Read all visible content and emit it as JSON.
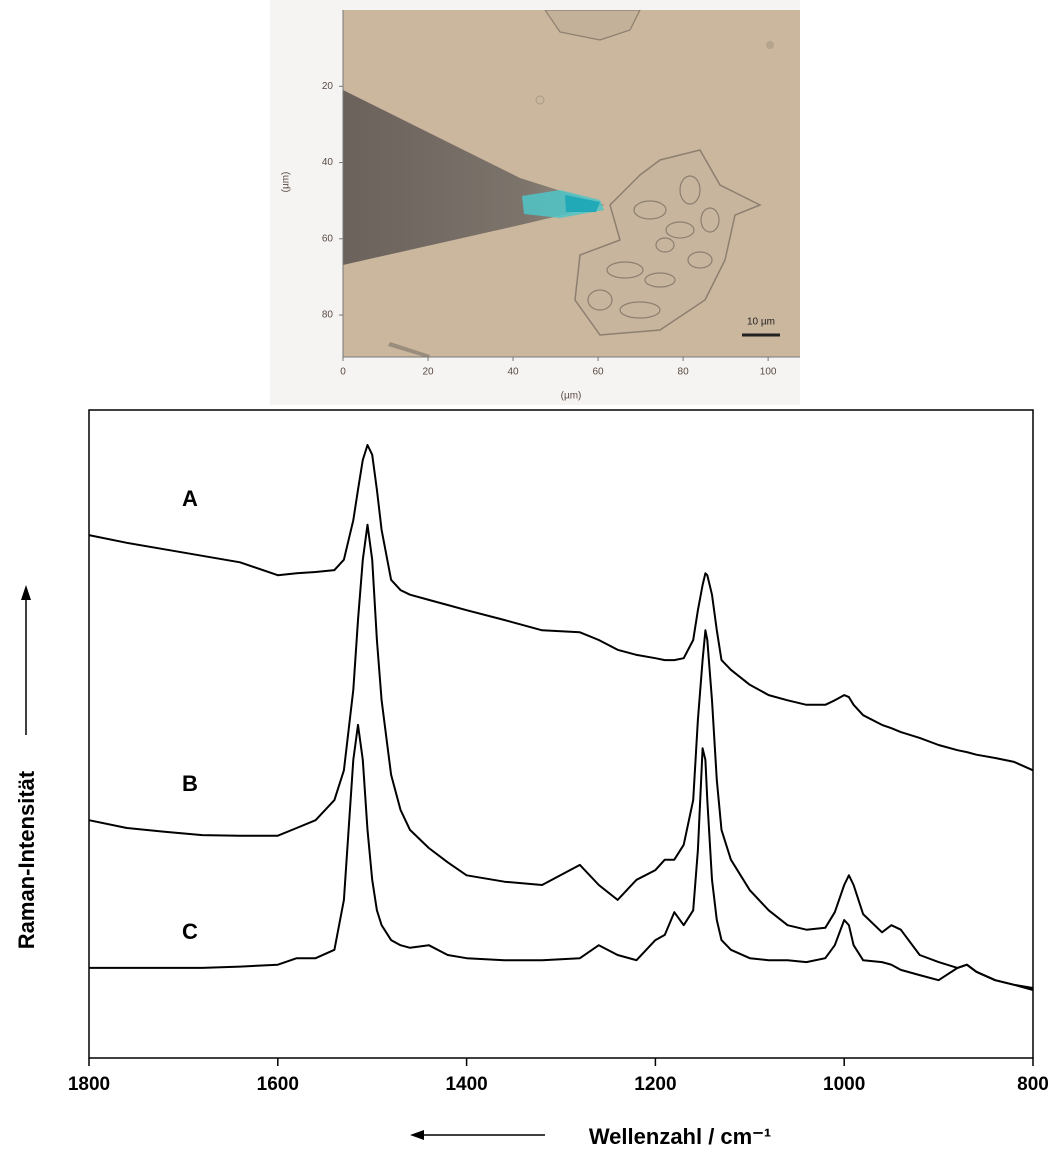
{
  "chart_data": [
    {
      "type": "image",
      "xlabel": "(µm)",
      "ylabel": "(µm)",
      "scale_label": "10 µm",
      "xlim": [
        0,
        107.5
      ],
      "ylim": [
        0,
        91
      ],
      "xticks": [
        0,
        20,
        40,
        60,
        80,
        100
      ],
      "yticks": [
        20,
        40,
        60,
        80
      ]
    },
    {
      "type": "line",
      "xlabel": "Wellenzahl / cm⁻¹",
      "ylabel": "Raman-Intensität",
      "xlim": [
        1800,
        800
      ],
      "ylim": [
        0,
        100
      ],
      "xticks": [
        1800,
        1600,
        1400,
        1200,
        1000,
        800
      ],
      "x": [
        1800,
        1760,
        1720,
        1680,
        1640,
        1600,
        1580,
        1560,
        1540,
        1530,
        1520,
        1515,
        1510,
        1505,
        1500,
        1495,
        1490,
        1480,
        1470,
        1460,
        1440,
        1420,
        1400,
        1360,
        1320,
        1280,
        1260,
        1240,
        1220,
        1200,
        1190,
        1180,
        1170,
        1160,
        1155,
        1150,
        1147,
        1145,
        1140,
        1135,
        1130,
        1120,
        1100,
        1080,
        1060,
        1040,
        1020,
        1010,
        1000,
        995,
        990,
        980,
        960,
        950,
        940,
        920,
        900,
        880,
        870,
        860,
        840,
        820,
        800
      ],
      "series": [
        {
          "name": "A",
          "color": "#000000",
          "values": [
            80.7,
            79.5,
            78.5,
            77.5,
            76.5,
            74.5,
            74.8,
            75,
            75.3,
            76.9,
            83,
            87.7,
            92.3,
            94.6,
            93.1,
            87.7,
            81.5,
            73.8,
            72.2,
            71.5,
            70.7,
            69.9,
            69.1,
            67.6,
            66,
            65.7,
            64.5,
            63,
            62.2,
            61.7,
            61.4,
            61.4,
            61.7,
            64.5,
            69.1,
            73,
            74.8,
            74.5,
            71.5,
            66,
            61.4,
            59.9,
            57.6,
            56,
            55.2,
            54.5,
            54.5,
            55.2,
            56,
            55.7,
            54.5,
            52.9,
            51.4,
            50.9,
            50.3,
            49.4,
            48.3,
            47.5,
            47.2,
            46.8,
            46.3,
            45.7,
            44.4
          ]
        },
        {
          "name": "B",
          "color": "#000000",
          "values": [
            36.7,
            35.5,
            34.9,
            34.4,
            34.3,
            34.3,
            35.5,
            36.7,
            39.8,
            44.4,
            56.8,
            67.6,
            76.9,
            82.3,
            76.9,
            64.5,
            55.2,
            43.7,
            38.3,
            35.2,
            32.4,
            30.2,
            28.2,
            27.2,
            26.7,
            29.8,
            26.7,
            24.4,
            27.5,
            29,
            30.6,
            30.6,
            32.9,
            39.8,
            52.2,
            61.4,
            66,
            64.5,
            55.2,
            42.9,
            35.2,
            30.6,
            25.9,
            22.8,
            20.5,
            19.8,
            20.1,
            22.5,
            26.7,
            28.2,
            26.7,
            22.2,
            19.4,
            20.5,
            19.8,
            15.9,
            14.8,
            13.9,
            14.4,
            13.3,
            12,
            11.3,
            10.8
          ]
        },
        {
          "name": "C",
          "color": "#000000",
          "values": [
            13.9,
            13.9,
            13.9,
            13.9,
            14.1,
            14.4,
            15.4,
            15.4,
            16.7,
            24.4,
            46,
            51.4,
            46,
            35.2,
            27.5,
            22.8,
            20.5,
            18.2,
            17.4,
            17,
            17.4,
            15.9,
            15.4,
            15.1,
            15.1,
            15.4,
            17.4,
            15.9,
            15.1,
            18.2,
            19,
            22.5,
            20.5,
            22.8,
            32.1,
            47.8,
            46,
            39.8,
            27.5,
            21.3,
            18.2,
            16.7,
            15.4,
            15.1,
            15.1,
            14.8,
            15.4,
            17.4,
            21.3,
            20.5,
            17.4,
            15.1,
            14.8,
            14.4,
            13.6,
            12.8,
            12,
            13.9,
            14.4,
            13.3,
            12,
            11.3,
            10.5
          ]
        }
      ]
    }
  ]
}
